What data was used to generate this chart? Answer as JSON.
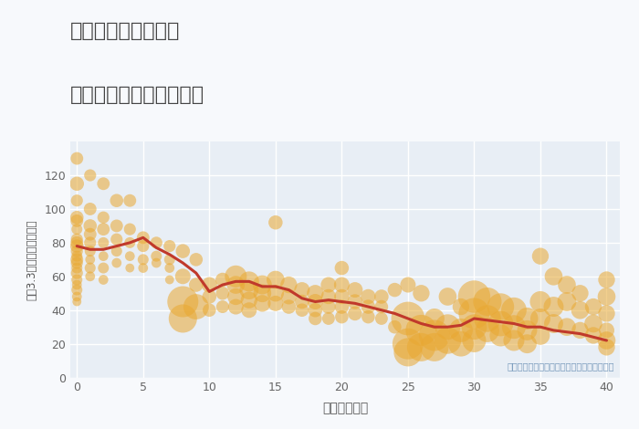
{
  "title_line1": "兵庫県播磨高岡駅の",
  "title_line2": "築年数別中古戸建て価格",
  "xlabel": "築年数（年）",
  "ylabel": "坪（3.3㎡）単価（万円）",
  "annotation": "円の大きさは、取引のあった物件面積を示す",
  "xlim": [
    -0.5,
    41
  ],
  "ylim": [
    0,
    140
  ],
  "yticks": [
    0,
    20,
    40,
    60,
    80,
    100,
    120
  ],
  "xticks": [
    0,
    5,
    10,
    15,
    20,
    25,
    30,
    35,
    40
  ],
  "fig_bg_color": "#f7f9fc",
  "plot_bg_color": "#e8eef5",
  "bubble_color": "#e8a832",
  "bubble_alpha": 0.55,
  "line_color": "#c0392b",
  "line_width": 2.2,
  "scatter_data": [
    [
      0,
      130,
      20
    ],
    [
      0,
      115,
      25
    ],
    [
      0,
      105,
      18
    ],
    [
      0,
      95,
      22
    ],
    [
      0,
      93,
      20
    ],
    [
      0,
      88,
      15
    ],
    [
      0,
      82,
      18
    ],
    [
      0,
      80,
      20
    ],
    [
      0,
      78,
      22
    ],
    [
      0,
      75,
      18
    ],
    [
      0,
      72,
      15
    ],
    [
      0,
      70,
      20
    ],
    [
      0,
      68,
      18
    ],
    [
      0,
      65,
      15
    ],
    [
      0,
      62,
      18
    ],
    [
      0,
      58,
      15
    ],
    [
      0,
      55,
      12
    ],
    [
      0,
      52,
      15
    ],
    [
      0,
      48,
      12
    ],
    [
      0,
      45,
      10
    ],
    [
      1,
      120,
      18
    ],
    [
      1,
      100,
      20
    ],
    [
      1,
      90,
      22
    ],
    [
      1,
      85,
      20
    ],
    [
      1,
      80,
      18
    ],
    [
      1,
      75,
      15
    ],
    [
      1,
      70,
      12
    ],
    [
      1,
      65,
      15
    ],
    [
      1,
      60,
      12
    ],
    [
      2,
      115,
      20
    ],
    [
      2,
      95,
      18
    ],
    [
      2,
      88,
      20
    ],
    [
      2,
      80,
      15
    ],
    [
      2,
      72,
      12
    ],
    [
      2,
      65,
      15
    ],
    [
      2,
      58,
      12
    ],
    [
      3,
      105,
      22
    ],
    [
      3,
      90,
      20
    ],
    [
      3,
      82,
      18
    ],
    [
      3,
      75,
      15
    ],
    [
      3,
      68,
      12
    ],
    [
      4,
      105,
      20
    ],
    [
      4,
      88,
      18
    ],
    [
      4,
      80,
      15
    ],
    [
      4,
      72,
      12
    ],
    [
      4,
      65,
      10
    ],
    [
      5,
      83,
      20
    ],
    [
      5,
      78,
      18
    ],
    [
      5,
      70,
      15
    ],
    [
      5,
      65,
      12
    ],
    [
      6,
      80,
      18
    ],
    [
      6,
      72,
      15
    ],
    [
      6,
      68,
      12
    ],
    [
      7,
      78,
      18
    ],
    [
      7,
      70,
      15
    ],
    [
      7,
      65,
      12
    ],
    [
      7,
      58,
      10
    ],
    [
      8,
      75,
      25
    ],
    [
      8,
      60,
      30
    ],
    [
      8,
      45,
      120
    ],
    [
      8,
      35,
      100
    ],
    [
      9,
      70,
      22
    ],
    [
      9,
      55,
      25
    ],
    [
      9,
      42,
      80
    ],
    [
      10,
      55,
      30
    ],
    [
      10,
      48,
      25
    ],
    [
      10,
      40,
      22
    ],
    [
      11,
      58,
      25
    ],
    [
      11,
      50,
      22
    ],
    [
      11,
      42,
      20
    ],
    [
      12,
      60,
      60
    ],
    [
      12,
      55,
      40
    ],
    [
      12,
      48,
      35
    ],
    [
      12,
      42,
      30
    ],
    [
      13,
      57,
      50
    ],
    [
      13,
      52,
      45
    ],
    [
      13,
      46,
      35
    ],
    [
      13,
      40,
      30
    ],
    [
      14,
      55,
      45
    ],
    [
      14,
      50,
      40
    ],
    [
      14,
      44,
      35
    ],
    [
      15,
      92,
      25
    ],
    [
      15,
      58,
      40
    ],
    [
      15,
      50,
      35
    ],
    [
      15,
      44,
      30
    ],
    [
      16,
      55,
      35
    ],
    [
      16,
      48,
      30
    ],
    [
      16,
      42,
      25
    ],
    [
      17,
      52,
      30
    ],
    [
      17,
      45,
      25
    ],
    [
      17,
      40,
      22
    ],
    [
      18,
      50,
      35
    ],
    [
      18,
      45,
      30
    ],
    [
      18,
      40,
      25
    ],
    [
      18,
      35,
      22
    ],
    [
      19,
      55,
      30
    ],
    [
      19,
      48,
      28
    ],
    [
      19,
      42,
      25
    ],
    [
      19,
      35,
      20
    ],
    [
      20,
      65,
      25
    ],
    [
      20,
      55,
      30
    ],
    [
      20,
      48,
      28
    ],
    [
      20,
      42,
      25
    ],
    [
      20,
      36,
      22
    ],
    [
      21,
      52,
      30
    ],
    [
      21,
      45,
      28
    ],
    [
      21,
      38,
      25
    ],
    [
      22,
      48,
      28
    ],
    [
      22,
      42,
      25
    ],
    [
      22,
      36,
      22
    ],
    [
      23,
      48,
      25
    ],
    [
      23,
      42,
      22
    ],
    [
      23,
      35,
      20
    ],
    [
      24,
      52,
      25
    ],
    [
      24,
      30,
      22
    ],
    [
      25,
      55,
      30
    ],
    [
      25,
      35,
      140
    ],
    [
      25,
      20,
      120
    ],
    [
      25,
      15,
      100
    ],
    [
      26,
      50,
      35
    ],
    [
      26,
      28,
      120
    ],
    [
      26,
      18,
      100
    ],
    [
      27,
      35,
      50
    ],
    [
      27,
      25,
      120
    ],
    [
      27,
      18,
      100
    ],
    [
      28,
      48,
      40
    ],
    [
      28,
      30,
      80
    ],
    [
      28,
      22,
      90
    ],
    [
      29,
      42,
      35
    ],
    [
      29,
      28,
      70
    ],
    [
      29,
      20,
      80
    ],
    [
      30,
      48,
      130
    ],
    [
      30,
      38,
      120
    ],
    [
      30,
      30,
      80
    ],
    [
      30,
      22,
      70
    ],
    [
      31,
      45,
      100
    ],
    [
      31,
      35,
      90
    ],
    [
      31,
      28,
      70
    ],
    [
      32,
      42,
      90
    ],
    [
      32,
      32,
      80
    ],
    [
      32,
      25,
      60
    ],
    [
      33,
      40,
      80
    ],
    [
      33,
      30,
      70
    ],
    [
      33,
      22,
      55
    ],
    [
      34,
      35,
      60
    ],
    [
      34,
      28,
      50
    ],
    [
      34,
      20,
      45
    ],
    [
      35,
      72,
      35
    ],
    [
      35,
      45,
      55
    ],
    [
      35,
      35,
      50
    ],
    [
      35,
      25,
      45
    ],
    [
      36,
      60,
      40
    ],
    [
      36,
      42,
      50
    ],
    [
      36,
      32,
      45
    ],
    [
      37,
      55,
      40
    ],
    [
      37,
      45,
      45
    ],
    [
      37,
      30,
      40
    ],
    [
      38,
      50,
      35
    ],
    [
      38,
      40,
      40
    ],
    [
      38,
      28,
      35
    ],
    [
      39,
      42,
      35
    ],
    [
      39,
      32,
      40
    ],
    [
      39,
      25,
      35
    ],
    [
      40,
      58,
      35
    ],
    [
      40,
      48,
      40
    ],
    [
      40,
      38,
      35
    ],
    [
      40,
      28,
      30
    ],
    [
      40,
      22,
      40
    ],
    [
      40,
      18,
      35
    ]
  ],
  "line_data": [
    [
      0,
      78
    ],
    [
      1,
      76
    ],
    [
      2,
      76
    ],
    [
      3,
      78
    ],
    [
      4,
      80
    ],
    [
      5,
      83
    ],
    [
      6,
      77
    ],
    [
      7,
      73
    ],
    [
      8,
      68
    ],
    [
      9,
      62
    ],
    [
      10,
      51
    ],
    [
      11,
      55
    ],
    [
      12,
      57
    ],
    [
      13,
      57
    ],
    [
      14,
      54
    ],
    [
      15,
      54
    ],
    [
      16,
      52
    ],
    [
      17,
      47
    ],
    [
      18,
      45
    ],
    [
      19,
      46
    ],
    [
      20,
      45
    ],
    [
      21,
      44
    ],
    [
      22,
      42
    ],
    [
      23,
      40
    ],
    [
      24,
      38
    ],
    [
      25,
      35
    ],
    [
      26,
      32
    ],
    [
      27,
      30
    ],
    [
      28,
      30
    ],
    [
      29,
      31
    ],
    [
      30,
      35
    ],
    [
      31,
      34
    ],
    [
      32,
      33
    ],
    [
      33,
      32
    ],
    [
      34,
      30
    ],
    [
      35,
      30
    ],
    [
      36,
      28
    ],
    [
      37,
      27
    ],
    [
      38,
      26
    ],
    [
      39,
      24
    ],
    [
      40,
      22
    ]
  ]
}
